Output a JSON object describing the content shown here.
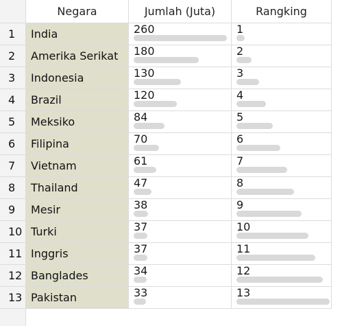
{
  "table": {
    "columns": [
      "Negara",
      "Jumlah (Juta)",
      "Rangking"
    ],
    "rows": [
      {
        "index": "1",
        "country": "India",
        "jumlah": "260",
        "jumlah_level": 1.0,
        "rank": "1",
        "rank_level": 0.0
      },
      {
        "index": "2",
        "country": "Amerika Serikat",
        "jumlah": "180",
        "jumlah_level": 0.666,
        "rank": "2",
        "rank_level": 0.083
      },
      {
        "index": "3",
        "country": "Indonesia",
        "jumlah": "130",
        "jumlah_level": 0.456,
        "rank": "3",
        "rank_level": 0.167
      },
      {
        "index": "4",
        "country": "Brazil",
        "jumlah": "120",
        "jumlah_level": 0.414,
        "rank": "4",
        "rank_level": 0.25
      },
      {
        "index": "5",
        "country": "Meksiko",
        "jumlah": "84",
        "jumlah_level": 0.264,
        "rank": "5",
        "rank_level": 0.333
      },
      {
        "index": "6",
        "country": "Filipina",
        "jumlah": "70",
        "jumlah_level": 0.205,
        "rank": "6",
        "rank_level": 0.417
      },
      {
        "index": "7",
        "country": "Vietnam",
        "jumlah": "61",
        "jumlah_level": 0.167,
        "rank": "7",
        "rank_level": 0.5
      },
      {
        "index": "8",
        "country": "Thailand",
        "jumlah": "47",
        "jumlah_level": 0.109,
        "rank": "8",
        "rank_level": 0.583
      },
      {
        "index": "9",
        "country": "Mesir",
        "jumlah": "38",
        "jumlah_level": 0.071,
        "rank": "9",
        "rank_level": 0.667
      },
      {
        "index": "10",
        "country": "Turki",
        "jumlah": "37",
        "jumlah_level": 0.067,
        "rank": "10",
        "rank_level": 0.75
      },
      {
        "index": "11",
        "country": "Inggris",
        "jumlah": "37",
        "jumlah_level": 0.067,
        "rank": "11",
        "rank_level": 0.833
      },
      {
        "index": "12",
        "country": "Banglades",
        "jumlah": "34",
        "jumlah_level": 0.054,
        "rank": "12",
        "rank_level": 0.917
      },
      {
        "index": "13",
        "country": "Pakistan",
        "jumlah": "33",
        "jumlah_level": 0.05,
        "rank": "13",
        "rank_level": 1.0
      }
    ]
  },
  "colors": {
    "country_fill": "#dfdfcc",
    "data_bar": "#d9d9d9",
    "header_fill": "#f3f3f3",
    "gridline": "#dcdcdc"
  }
}
